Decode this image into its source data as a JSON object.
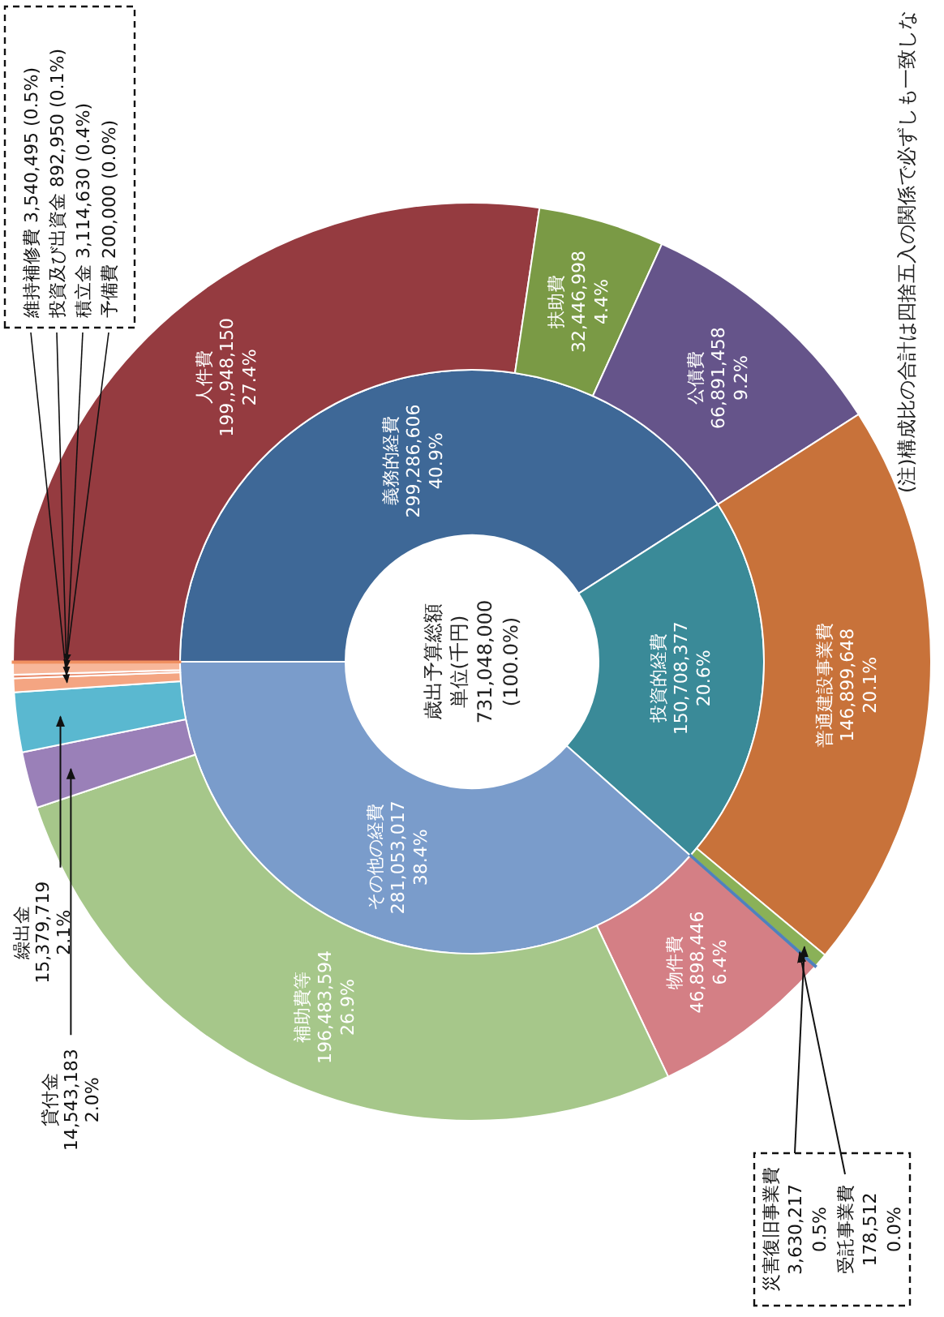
{
  "chart_data": [
    {
      "type": "donut",
      "title": "歳出予算総額",
      "subtitle": "単位(千円)",
      "annotations": [
        "731,048,000",
        "(100.0%)"
      ],
      "categories": [
        "義務的経費",
        "投資的経費",
        "その他の経費"
      ],
      "values": [
        299286606,
        150708377,
        281053017
      ],
      "colors": [
        "#3e6897",
        "#3a8a98",
        "#7a9ccb"
      ],
      "value_labels": [
        "299,286,606 40.9%",
        "150,708,377 20.6%",
        "281,053,017 38.4%"
      ]
    },
    {
      "type": "donut",
      "annotations": [
        "(注)構成比の合計は四捨五入の関係で必ずしも一致しな"
      ],
      "categories": [
        "人件費",
        "扶助費",
        "公債費",
        "普通建設事業費",
        "災害復旧事業費",
        "受託事業費",
        "物件費",
        "補助費等",
        "貸付金",
        "繰出金",
        "維持補修費",
        "投資及び出資金",
        "積立金",
        "予備費"
      ],
      "values": [
        199948150,
        32446998,
        66891458,
        146899648,
        3630217,
        178512,
        46898446,
        196483594,
        14543183,
        15379719,
        3540495,
        892950,
        3114630,
        200000
      ],
      "colors": [
        "#953b40",
        "#7a9a45",
        "#65548a",
        "#c8723a",
        "#8ab158",
        "#4f81bd",
        "#d47f85",
        "#a6c78a",
        "#9a80b8",
        "#5ab8d0",
        "#f4a582",
        "#e88a6a",
        "#f7b79a",
        "#f09060"
      ],
      "value_labels": [
        "199,,948,150 27.4%",
        "32,446,998 4.4%",
        "66,891,458 9.2%",
        "146,899,648 20.1%",
        "3,630,217 0.5%",
        "178,512 0.0%",
        "46,898,446 6.4%",
        "196,483,594 26.9%",
        "14,543,183 2.0%",
        "15,379,719 2.1%",
        "3,540,495 (0.5%)",
        "892,950 (0.1%)",
        "3,114,630 (0.4%)",
        "200,000 (0.0%)"
      ]
    }
  ]
}
